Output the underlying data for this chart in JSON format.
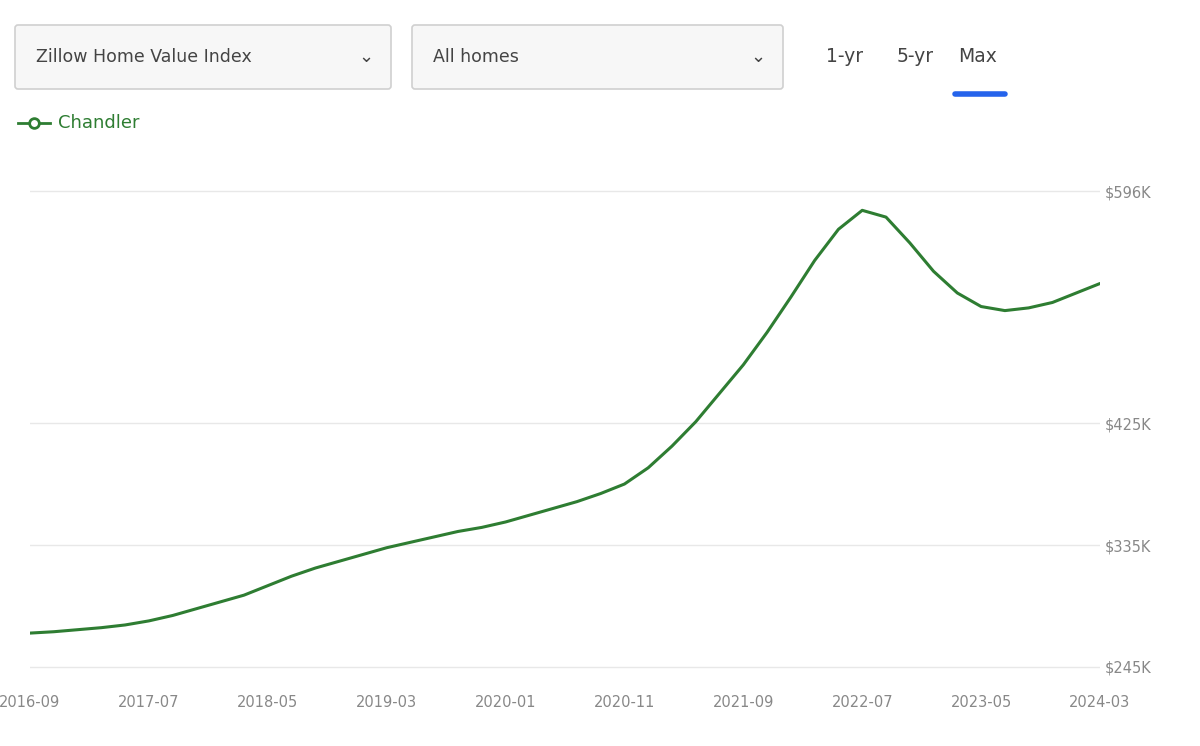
{
  "x_labels": [
    "2016-09",
    "2017-07",
    "2018-05",
    "2019-03",
    "2020-01",
    "2020-11",
    "2021-09",
    "2022-07",
    "2023-05",
    "2024-03"
  ],
  "x_numeric": [
    0,
    10,
    20,
    30,
    40,
    50,
    60,
    70,
    80,
    90
  ],
  "series": {
    "Chandler": {
      "color": "#2e7d32",
      "x": [
        0,
        2,
        4,
        6,
        8,
        10,
        12,
        14,
        16,
        18,
        20,
        22,
        24,
        26,
        28,
        30,
        32,
        34,
        36,
        38,
        40,
        42,
        44,
        46,
        48,
        50,
        52,
        54,
        56,
        58,
        60,
        62,
        64,
        66,
        68,
        70,
        72,
        74,
        76,
        78,
        80,
        82,
        84,
        86,
        88,
        90
      ],
      "y": [
        270000,
        271000,
        272500,
        274000,
        276000,
        279000,
        283000,
        288000,
        293000,
        298000,
        305000,
        312000,
        318000,
        323000,
        328000,
        333000,
        337000,
        341000,
        345000,
        348000,
        352000,
        357000,
        362000,
        367000,
        373000,
        380000,
        392000,
        408000,
        426000,
        447000,
        468000,
        492000,
        518000,
        545000,
        568000,
        582000,
        577000,
        558000,
        537000,
        521000,
        511000,
        508000,
        510000,
        514000,
        521000,
        528000
      ]
    }
  },
  "yticks": [
    245000,
    335000,
    425000,
    596000
  ],
  "ytick_labels": [
    "$245K",
    "$335K",
    "$425K",
    "$596K"
  ],
  "ymin": 228000,
  "ymax": 628000,
  "xmin": 0,
  "xmax": 90,
  "bg_color": "#ffffff",
  "grid_color": "#e8e8e8",
  "legend_label": "Chandler",
  "legend_color": "#2e7d32",
  "dropdown1": "Zillow Home Value Index",
  "dropdown2": "All homes",
  "btn_1yr": "1-yr",
  "btn_5yr": "5-yr",
  "btn_max": "Max",
  "max_underline_color": "#2563eb",
  "dropdown_border": "#d0d0d0",
  "dropdown_bg": "#f7f7f7",
  "text_dark": "#444444",
  "text_gray": "#888888"
}
